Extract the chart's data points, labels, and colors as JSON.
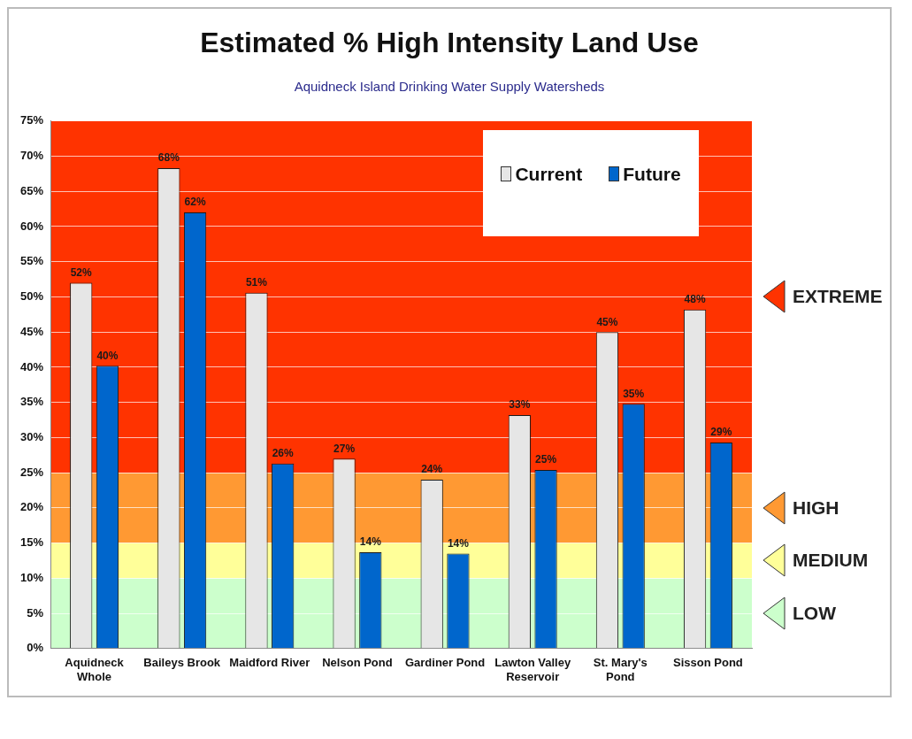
{
  "chart_data": {
    "type": "bar",
    "title": "Estimated % High Intensity Land Use",
    "subtitle": "Aquidneck Island Drinking Water Supply Watersheds",
    "categories": [
      "Aquidneck Whole",
      "Baileys Brook",
      "Maidford River",
      "Nelson Pond",
      "Gardiner Pond",
      "Lawton Valley Reservoir",
      "St. Mary's Pond",
      "Sisson Pond"
    ],
    "series": [
      {
        "name": "Current",
        "color": "#e6e6e6",
        "values": [
          52,
          68.3,
          50.6,
          27,
          24,
          33.2,
          45,
          48.2
        ],
        "value_labels": [
          "52%",
          "68%",
          "51%",
          "27%",
          "24%",
          "33%",
          "45%",
          "48%"
        ]
      },
      {
        "name": "Future",
        "color": "#0066cc",
        "values": [
          40.2,
          62,
          26.3,
          13.7,
          13.5,
          25.4,
          34.8,
          29.3
        ],
        "value_labels": [
          "40%",
          "62%",
          "26%",
          "14%",
          "14%",
          "25%",
          "35%",
          "29%"
        ]
      }
    ],
    "ylim": [
      0,
      75
    ],
    "yticks": [
      {
        "value": 0,
        "label": "0%"
      },
      {
        "value": 5,
        "label": "5%"
      },
      {
        "value": 10,
        "label": "10%"
      },
      {
        "value": 15,
        "label": "15%"
      },
      {
        "value": 20,
        "label": "20%"
      },
      {
        "value": 25,
        "label": "25%"
      },
      {
        "value": 30,
        "label": "30%"
      },
      {
        "value": 35,
        "label": "35%"
      },
      {
        "value": 40,
        "label": "40%"
      },
      {
        "value": 45,
        "label": "45%"
      },
      {
        "value": 50,
        "label": "50%"
      },
      {
        "value": 55,
        "label": "55%"
      },
      {
        "value": 60,
        "label": "60%"
      },
      {
        "value": 65,
        "label": "65%"
      },
      {
        "value": 70,
        "label": "70%"
      },
      {
        "value": 75,
        "label": "75%"
      }
    ],
    "bands": [
      {
        "axis": "y",
        "from": 0,
        "to": 10,
        "label": "LOW",
        "color": "#ccffcc"
      },
      {
        "axis": "y",
        "from": 10,
        "to": 15,
        "label": "MEDIUM",
        "color": "#ffff99"
      },
      {
        "axis": "y",
        "from": 15,
        "to": 25,
        "label": "HIGH",
        "color": "#ff9933"
      },
      {
        "axis": "y",
        "from": 25,
        "to": 75,
        "label": "EXTREME",
        "color": "#ff3300"
      }
    ],
    "grid": "y",
    "legend": "top right"
  }
}
